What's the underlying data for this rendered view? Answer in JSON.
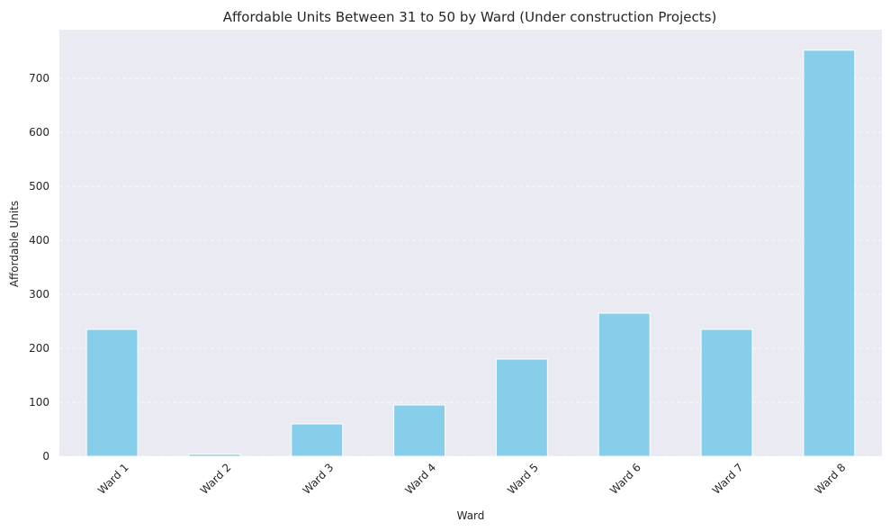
{
  "chart_data": {
    "type": "bar",
    "title": "Affordable Units Between 31 to 50 by Ward (Under construction Projects)",
    "xlabel": "Ward",
    "ylabel": "Affordable Units",
    "categories": [
      "Ward 1",
      "Ward 2",
      "Ward 3",
      "Ward 4",
      "Ward 5",
      "Ward 6",
      "Ward 7",
      "Ward 8"
    ],
    "values": [
      235,
      4,
      60,
      95,
      180,
      265,
      235,
      752
    ],
    "ylim": [
      0,
      790
    ],
    "yticks": [
      0,
      100,
      200,
      300,
      400,
      500,
      600,
      700
    ],
    "ytick_labels": [
      "0",
      "100",
      "200",
      "300",
      "400",
      "500",
      "600",
      "700"
    ],
    "grid": true,
    "bar_color": "#87ceeb",
    "background_color": "#eaeaf2"
  }
}
